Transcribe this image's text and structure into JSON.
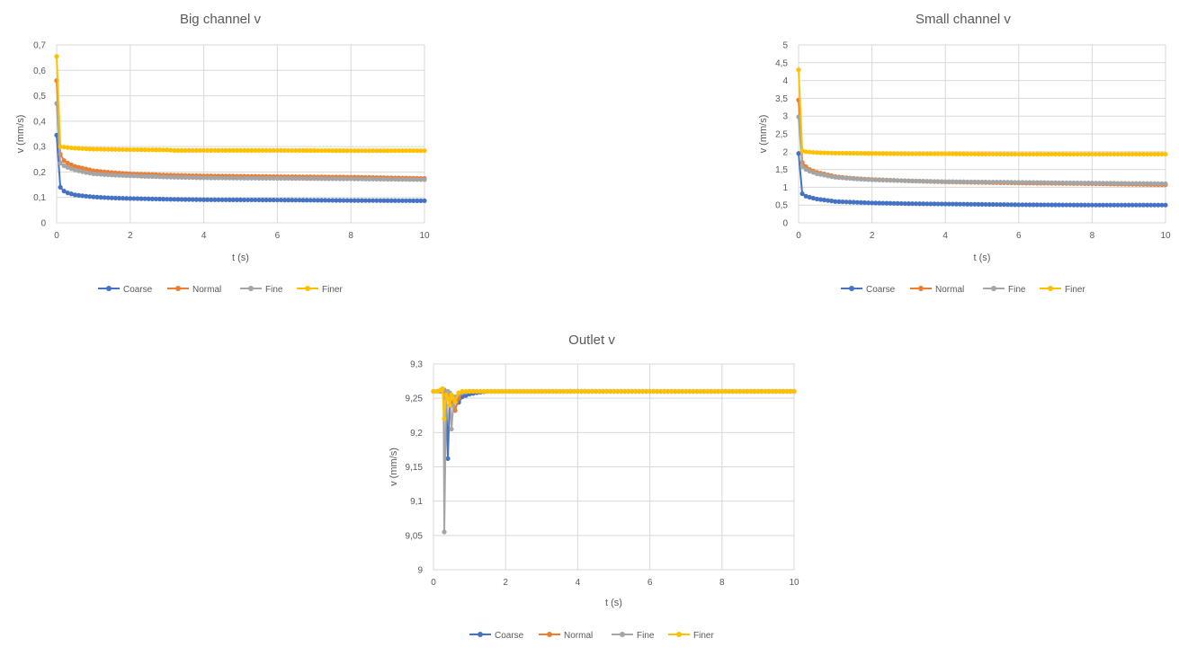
{
  "colors": {
    "Coarse": "#4472c4",
    "Normal": "#ed7d31",
    "Fine": "#a5a5a5",
    "Finer": "#ffc000"
  },
  "chart_data": [
    {
      "type": "line",
      "title": "Big channel v",
      "xlabel": "t (s)",
      "ylabel": "v (mm/s)",
      "xlim": [
        0,
        10
      ],
      "ylim": [
        0,
        0.7
      ],
      "xticks": [
        0,
        2,
        4,
        6,
        8,
        10
      ],
      "xtick_labels": [
        "0",
        "2",
        "4",
        "6",
        "8",
        "10"
      ],
      "yticks": [
        0,
        0.1,
        0.2,
        0.3,
        0.4,
        0.5,
        0.6,
        0.7
      ],
      "ytick_labels": [
        "0",
        "0,1",
        "0,2",
        "0,3",
        "0,4",
        "0,5",
        "0,6",
        "0,7"
      ],
      "grid": true,
      "legend": "bottom",
      "series": [
        {
          "name": "Coarse",
          "points": [
            [
              0,
              0.345
            ],
            [
              0.1,
              0.14
            ],
            [
              0.2,
              0.125
            ],
            [
              0.3,
              0.118
            ],
            [
              0.5,
              0.11
            ],
            [
              0.8,
              0.105
            ],
            [
              1,
              0.102
            ],
            [
              1.5,
              0.098
            ],
            [
              2,
              0.096
            ],
            [
              3,
              0.093
            ],
            [
              4,
              0.091
            ],
            [
              6,
              0.09
            ],
            [
              8,
              0.088
            ],
            [
              10,
              0.087
            ]
          ]
        },
        {
          "name": "Normal",
          "points": [
            [
              0,
              0.56
            ],
            [
              0.1,
              0.27
            ],
            [
              0.2,
              0.245
            ],
            [
              0.3,
              0.235
            ],
            [
              0.5,
              0.222
            ],
            [
              0.8,
              0.212
            ],
            [
              1,
              0.205
            ],
            [
              1.5,
              0.198
            ],
            [
              2,
              0.193
            ],
            [
              3,
              0.188
            ],
            [
              4,
              0.185
            ],
            [
              6,
              0.182
            ],
            [
              8,
              0.18
            ],
            [
              10,
              0.175
            ]
          ]
        },
        {
          "name": "Fine",
          "points": [
            [
              0,
              0.47
            ],
            [
              0.1,
              0.235
            ],
            [
              0.2,
              0.225
            ],
            [
              0.3,
              0.218
            ],
            [
              0.5,
              0.208
            ],
            [
              0.8,
              0.198
            ],
            [
              1,
              0.193
            ],
            [
              1.5,
              0.188
            ],
            [
              2,
              0.185
            ],
            [
              3,
              0.18
            ],
            [
              4,
              0.177
            ],
            [
              6,
              0.175
            ],
            [
              8,
              0.173
            ],
            [
              10,
              0.17
            ]
          ]
        },
        {
          "name": "Finer",
          "points": [
            [
              0,
              0.655
            ],
            [
              0.1,
              0.3
            ],
            [
              0.2,
              0.298
            ],
            [
              0.4,
              0.295
            ],
            [
              0.6,
              0.293
            ],
            [
              1,
              0.29
            ],
            [
              1.5,
              0.289
            ],
            [
              2,
              0.288
            ],
            [
              3,
              0.287
            ],
            [
              3.2,
              0.285
            ],
            [
              4,
              0.285
            ],
            [
              6,
              0.285
            ],
            [
              8,
              0.284
            ],
            [
              10,
              0.284
            ]
          ]
        }
      ]
    },
    {
      "type": "line",
      "title": "Small channel v",
      "xlabel": "t (s)",
      "ylabel": "v (mm/s)",
      "xlim": [
        0,
        10
      ],
      "ylim": [
        0,
        5
      ],
      "xticks": [
        0,
        2,
        4,
        6,
        8,
        10
      ],
      "xtick_labels": [
        "0",
        "2",
        "4",
        "6",
        "8",
        "10"
      ],
      "yticks": [
        0,
        0.5,
        1,
        1.5,
        2,
        2.5,
        3,
        3.5,
        4,
        4.5,
        5
      ],
      "ytick_labels": [
        "0",
        "0,5",
        "1",
        "1,5",
        "2",
        "2,5",
        "3",
        "3,5",
        "4",
        "4,5",
        "5"
      ],
      "grid": true,
      "legend": "bottom",
      "series": [
        {
          "name": "Coarse",
          "points": [
            [
              0,
              1.95
            ],
            [
              0.1,
              0.82
            ],
            [
              0.2,
              0.75
            ],
            [
              0.3,
              0.72
            ],
            [
              0.5,
              0.67
            ],
            [
              0.8,
              0.63
            ],
            [
              1,
              0.6
            ],
            [
              1.5,
              0.58
            ],
            [
              2,
              0.56
            ],
            [
              3,
              0.54
            ],
            [
              4,
              0.53
            ],
            [
              5,
              0.52
            ],
            [
              6,
              0.51
            ],
            [
              8,
              0.5
            ],
            [
              10,
              0.5
            ]
          ]
        },
        {
          "name": "Normal",
          "points": [
            [
              0,
              3.45
            ],
            [
              0.1,
              1.7
            ],
            [
              0.2,
              1.58
            ],
            [
              0.3,
              1.5
            ],
            [
              0.5,
              1.42
            ],
            [
              0.8,
              1.35
            ],
            [
              1,
              1.3
            ],
            [
              1.5,
              1.25
            ],
            [
              2,
              1.22
            ],
            [
              3,
              1.18
            ],
            [
              4,
              1.15
            ],
            [
              6,
              1.12
            ],
            [
              8,
              1.1
            ],
            [
              10,
              1.07
            ]
          ]
        },
        {
          "name": "Fine",
          "points": [
            [
              0,
              2.98
            ],
            [
              0.1,
              1.58
            ],
            [
              0.2,
              1.5
            ],
            [
              0.3,
              1.45
            ],
            [
              0.5,
              1.38
            ],
            [
              0.8,
              1.32
            ],
            [
              1,
              1.28
            ],
            [
              1.5,
              1.24
            ],
            [
              2,
              1.21
            ],
            [
              3,
              1.18
            ],
            [
              4,
              1.16
            ],
            [
              6,
              1.14
            ],
            [
              8,
              1.12
            ],
            [
              10,
              1.1
            ]
          ]
        },
        {
          "name": "Finer",
          "points": [
            [
              0,
              4.3
            ],
            [
              0.1,
              2.02
            ],
            [
              0.2,
              2.0
            ],
            [
              0.4,
              1.98
            ],
            [
              0.6,
              1.97
            ],
            [
              1,
              1.96
            ],
            [
              2,
              1.95
            ],
            [
              3,
              1.94
            ],
            [
              4,
              1.94
            ],
            [
              6,
              1.93
            ],
            [
              8,
              1.93
            ],
            [
              10,
              1.93
            ]
          ]
        }
      ]
    },
    {
      "type": "line",
      "title": "Outlet v",
      "xlabel": "t (s)",
      "ylabel": "v (mm/s)",
      "xlim": [
        0,
        10
      ],
      "ylim": [
        9,
        9.3
      ],
      "xticks": [
        0,
        2,
        4,
        6,
        8,
        10
      ],
      "xtick_labels": [
        "0",
        "2",
        "4",
        "6",
        "8",
        "10"
      ],
      "yticks": [
        9,
        9.05,
        9.1,
        9.15,
        9.2,
        9.25,
        9.3
      ],
      "ytick_labels": [
        "9",
        "9,05",
        "9,1",
        "9,15",
        "9,2",
        "9,25",
        "9,3"
      ],
      "grid": true,
      "legend": "bottom",
      "series": [
        {
          "name": "Coarse",
          "points": [
            [
              0,
              9.26
            ],
            [
              0.1,
              9.26
            ],
            [
              0.2,
              9.26
            ],
            [
              0.3,
              9.262
            ],
            [
              0.35,
              9.255
            ],
            [
              0.4,
              9.162
            ],
            [
              0.45,
              9.25
            ],
            [
              0.5,
              9.252
            ],
            [
              0.6,
              9.248
            ],
            [
              0.7,
              9.244
            ],
            [
              0.8,
              9.252
            ],
            [
              1,
              9.256
            ],
            [
              1.2,
              9.258
            ],
            [
              1.5,
              9.26
            ],
            [
              2,
              9.26
            ],
            [
              4,
              9.26
            ],
            [
              6,
              9.26
            ],
            [
              8,
              9.26
            ],
            [
              10,
              9.26
            ]
          ]
        },
        {
          "name": "Normal",
          "points": [
            [
              0,
              9.26
            ],
            [
              0.1,
              9.26
            ],
            [
              0.2,
              9.26
            ],
            [
              0.3,
              9.262
            ],
            [
              0.35,
              9.25
            ],
            [
              0.4,
              9.255
            ],
            [
              0.45,
              9.258
            ],
            [
              0.5,
              9.24
            ],
            [
              0.55,
              9.25
            ],
            [
              0.6,
              9.232
            ],
            [
              0.7,
              9.25
            ],
            [
              0.8,
              9.258
            ],
            [
              1,
              9.26
            ],
            [
              2,
              9.26
            ],
            [
              4,
              9.26
            ],
            [
              6,
              9.26
            ],
            [
              8,
              9.26
            ],
            [
              10,
              9.26
            ]
          ]
        },
        {
          "name": "Fine",
          "points": [
            [
              0,
              9.26
            ],
            [
              0.1,
              9.26
            ],
            [
              0.2,
              9.26
            ],
            [
              0.28,
              9.262
            ],
            [
              0.3,
              9.055
            ],
            [
              0.35,
              9.25
            ],
            [
              0.4,
              9.26
            ],
            [
              0.45,
              9.258
            ],
            [
              0.5,
              9.205
            ],
            [
              0.55,
              9.24
            ],
            [
              0.6,
              9.252
            ],
            [
              0.7,
              9.256
            ],
            [
              0.8,
              9.258
            ],
            [
              1,
              9.26
            ],
            [
              2,
              9.26
            ],
            [
              4,
              9.26
            ],
            [
              6,
              9.26
            ],
            [
              8,
              9.26
            ],
            [
              10,
              9.26
            ]
          ]
        },
        {
          "name": "Finer",
          "points": [
            [
              0,
              9.26
            ],
            [
              0.1,
              9.26
            ],
            [
              0.2,
              9.262
            ],
            [
              0.25,
              9.264
            ],
            [
              0.3,
              9.22
            ],
            [
              0.35,
              9.255
            ],
            [
              0.4,
              9.25
            ],
            [
              0.45,
              9.24
            ],
            [
              0.5,
              9.255
            ],
            [
              0.55,
              9.25
            ],
            [
              0.6,
              9.245
            ],
            [
              0.7,
              9.258
            ],
            [
              0.8,
              9.26
            ],
            [
              1,
              9.26
            ],
            [
              2,
              9.26
            ],
            [
              4,
              9.26
            ],
            [
              6,
              9.26
            ],
            [
              8,
              9.26
            ],
            [
              10,
              9.26
            ]
          ]
        }
      ]
    }
  ]
}
